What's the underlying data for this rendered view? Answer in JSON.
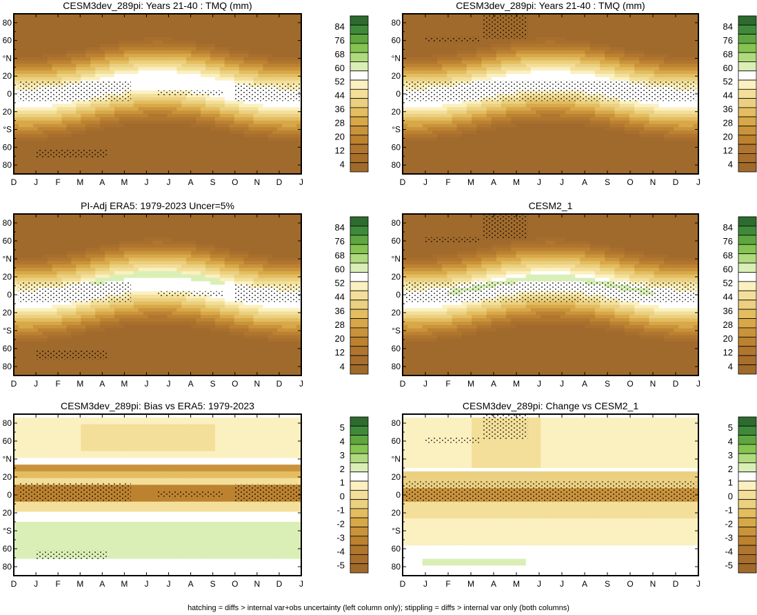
{
  "chart_data": {
    "type": "heatmap",
    "shared": {
      "x_tick_labels": [
        "D",
        "J",
        "F",
        "M",
        "A",
        "M",
        "J",
        "J",
        "A",
        "S",
        "O",
        "N",
        "D",
        "J"
      ],
      "y_tick_labels": [
        "80",
        "60",
        "°N",
        "20",
        "0",
        "20",
        "°S",
        "60",
        "80"
      ],
      "xlim": [
        0,
        13
      ],
      "ylim": [
        -90,
        90
      ]
    },
    "colorbars": {
      "abs": {
        "labels": [
          "84",
          "76",
          "68",
          "60",
          "52",
          "44",
          "36",
          "28",
          "20",
          "12",
          "4"
        ],
        "colors": [
          "#2e6b2e",
          "#3f8a3a",
          "#5fa640",
          "#86c452",
          "#b0da7e",
          "#d9efb6",
          "#ffffff",
          "#fbf0c0",
          "#f3df99",
          "#ead080",
          "#e3bd60",
          "#d8a848",
          "#c9933c",
          "#bc8230",
          "#b07630",
          "#a86e2c",
          "#a06a2c"
        ]
      },
      "diff": {
        "labels": [
          "5",
          "4",
          "3",
          "2",
          "1",
          "0",
          "-1",
          "-2",
          "-3",
          "-4",
          "-5"
        ],
        "colors": [
          "#2e6b2e",
          "#3f8a3a",
          "#5fa640",
          "#86c452",
          "#b0da7e",
          "#d9efb6",
          "#ffffff",
          "#fbf0c0",
          "#f3df99",
          "#ead080",
          "#e3bd60",
          "#d8a848",
          "#c9933c",
          "#bc8230",
          "#b07630",
          "#a86e2c",
          "#a06a2c"
        ]
      }
    },
    "panels": [
      {
        "title": "CESM3dev_289pi: Years 21-40 : TMQ (mm)",
        "kind": "abs",
        "cbar": "abs",
        "hatch": "left"
      },
      {
        "title": "CESM3dev_289pi: Years 21-40 : TMQ (mm)",
        "kind": "abs",
        "cbar": "abs",
        "hatch": "right"
      },
      {
        "title": "PI-Adj ERA5: 1979-2023 Uncer=5%",
        "kind": "abs2",
        "cbar": "abs",
        "hatch": "left2"
      },
      {
        "title": "CESM2_1",
        "kind": "abs3",
        "cbar": "abs",
        "hatch": "right"
      },
      {
        "title": "CESM3dev_289pi: Bias vs ERA5: 1979-2023",
        "kind": "bias",
        "cbar": "diff",
        "hatch": "left"
      },
      {
        "title": "CESM3dev_289pi: Change vs CESM2_1",
        "kind": "change",
        "cbar": "diff",
        "hatch": "right"
      }
    ],
    "footnote": "hatching = diffs > internal var+obs uncertainty (left column only); stippling = diffs > internal var only (both columns)"
  }
}
